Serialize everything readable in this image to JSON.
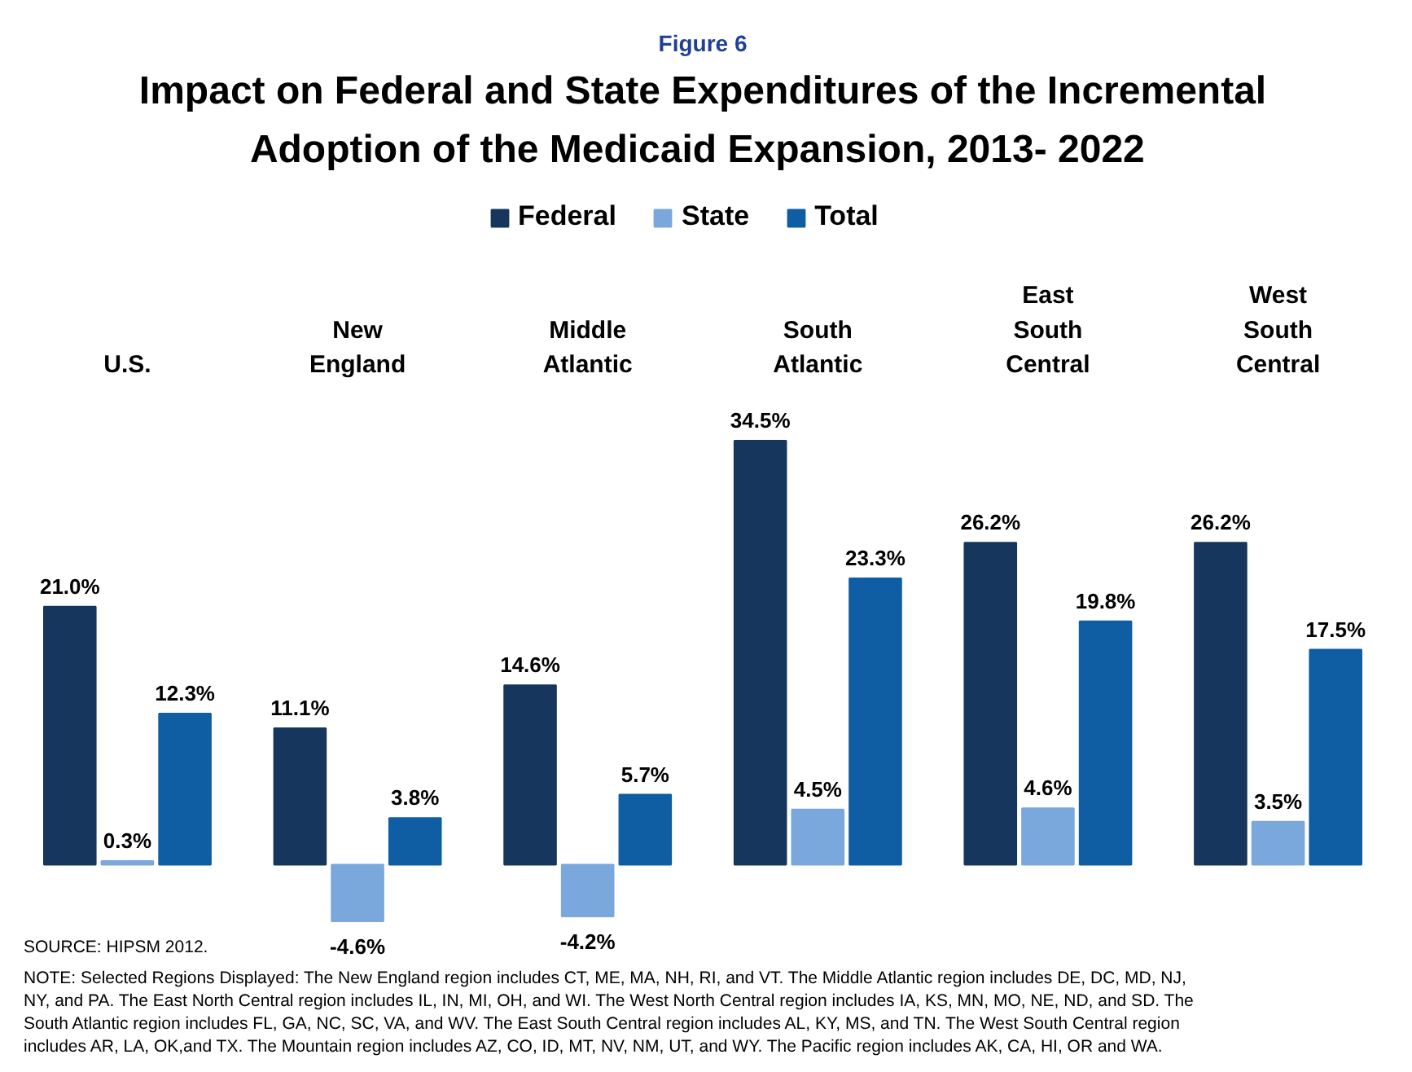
{
  "chart_data": {
    "type": "bar",
    "title": "Impact on Federal and State Expenditures of the Incremental Adoption of the Medicaid Expansion,  2013- 2022",
    "categories": [
      "U.S.",
      "New\nEngland",
      "Middle\nAtlantic",
      "South\nAtlantic",
      "East\nSouth\nCentral",
      "West\nSouth\nCentral"
    ],
    "series": [
      {
        "name": "Federal",
        "color": "#17365d",
        "values": [
          21.0,
          11.1,
          14.6,
          34.5,
          26.2,
          26.2
        ],
        "value_labels": [
          "21.0%",
          "11.1%",
          "14.6%",
          "34.5%",
          "26.2%",
          "26.2%"
        ]
      },
      {
        "name": "State",
        "color": "#7aa7dc",
        "values": [
          0.3,
          -4.6,
          -4.2,
          4.5,
          4.6,
          3.5
        ],
        "value_labels": [
          "0.3%",
          "-4.6%",
          "-4.2%",
          "4.5%",
          "4.6%",
          "3.5%"
        ]
      },
      {
        "name": "Total",
        "color": "#0f5da3",
        "values": [
          12.3,
          3.8,
          5.7,
          23.3,
          19.8,
          17.5
        ],
        "value_labels": [
          "12.3%",
          "3.8%",
          "5.7%",
          "23.3%",
          "19.8%",
          "17.5%"
        ]
      }
    ],
    "legend": "top",
    "annotations": [
      "Figure 6",
      "SOURCE: HIPSM 2012.",
      "NOTE:  Selected Regions Displayed:  The New England region includes CT, ME, MA, NH, RI, and VT. The Middle Atlantic region includes DE, DC, MD, NJ, NY, and PA. The East North Central region includes IL, IN, MI, OH, and WI. The West North Central region includes IA, KS, MN, MO, NE, ND, and SD. The South Atlantic region includes FL, GA, NC, SC, VA, and WV. The East South Central region includes AL, KY, MS, and TN. The West South Central region includes AR, LA, OK,and TX. The Mountain region includes AZ, CO, ID, MT, NV, NM, UT, and WY. The Pacific region includes AK, CA, HI, OR and WA."
    ]
  }
}
